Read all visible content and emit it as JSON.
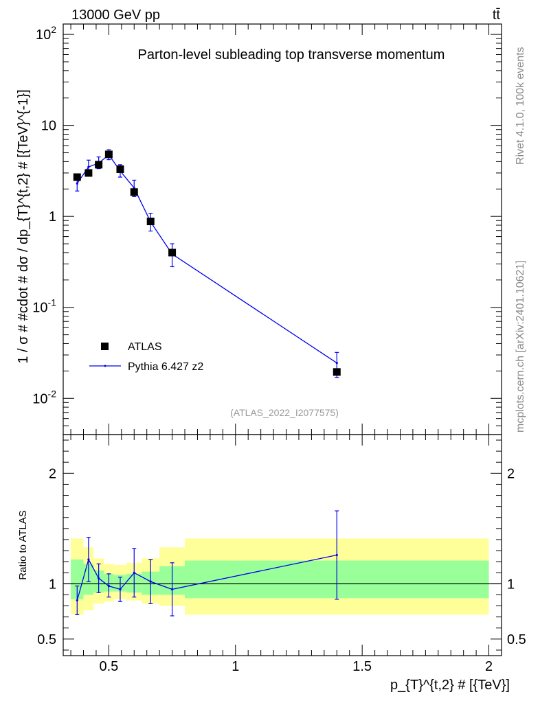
{
  "header": {
    "left": "13000 GeV pp",
    "right": "tt̄"
  },
  "side_labels": {
    "top": "Rivet 4.1.0,  100k events",
    "bottom": "mcplots.cern.ch [arXiv:2401.10621]"
  },
  "colors": {
    "mc": "#0000ee",
    "band_outer": "#ffff99",
    "band_inner": "#99ff99",
    "data": "#000000",
    "watermark": "#999999"
  },
  "chart_data": [
    {
      "type": "line",
      "panel": "main",
      "title": "Parton-level subleading top transverse momentum",
      "watermark": "(ATLAS_2022_I2077575)",
      "xlabel": "p_{T}^{t,2} # [{TeV}]",
      "ylabel": "1 / σ # #cdot # dσ / dp_{T}^{t,2} # [{TeV}^{-1}]",
      "yscale": "log",
      "xlim": [
        0.32,
        2.05
      ],
      "ylim": [
        0.004,
        130
      ],
      "y_ticks": [
        {
          "v": 0.01,
          "mant": "10",
          "exp": "-2"
        },
        {
          "v": 0.1,
          "mant": "10",
          "exp": "-1"
        },
        {
          "v": 1,
          "mant": "1",
          "exp": ""
        },
        {
          "v": 10,
          "mant": "10",
          "exp": ""
        },
        {
          "v": 100,
          "mant": "10",
          "exp": "2"
        }
      ],
      "legend": {
        "position": "bottom-left",
        "entries": [
          "ATLAS",
          "Pythia 6.427 z2"
        ]
      },
      "series": [
        {
          "name": "ATLAS",
          "style": "markers",
          "points": [
            {
              "x": 0.375,
              "y": 2.7
            },
            {
              "x": 0.42,
              "y": 3.0
            },
            {
              "x": 0.46,
              "y": 3.7
            },
            {
              "x": 0.5,
              "y": 4.8
            },
            {
              "x": 0.545,
              "y": 3.3
            },
            {
              "x": 0.6,
              "y": 1.85
            },
            {
              "x": 0.665,
              "y": 0.88
            },
            {
              "x": 0.75,
              "y": 0.4
            },
            {
              "x": 1.4,
              "y": 0.0195
            }
          ]
        },
        {
          "name": "Pythia 6.427 z2",
          "style": "line",
          "points": [
            {
              "x": 0.375,
              "y": 2.3,
              "lo": 1.9,
              "hi": 2.75
            },
            {
              "x": 0.42,
              "y": 3.5,
              "lo": 3.05,
              "hi": 4.15
            },
            {
              "x": 0.46,
              "y": 3.85,
              "lo": 3.35,
              "hi": 4.5
            },
            {
              "x": 0.5,
              "y": 4.75,
              "lo": 4.2,
              "hi": 5.4
            },
            {
              "x": 0.545,
              "y": 3.15,
              "lo": 2.7,
              "hi": 3.7
            },
            {
              "x": 0.6,
              "y": 2.05,
              "lo": 1.65,
              "hi": 2.5
            },
            {
              "x": 0.665,
              "y": 0.87,
              "lo": 0.69,
              "hi": 1.08
            },
            {
              "x": 0.75,
              "y": 0.385,
              "lo": 0.28,
              "hi": 0.5
            },
            {
              "x": 1.4,
              "y": 0.0245,
              "lo": 0.017,
              "hi": 0.032
            }
          ]
        }
      ]
    },
    {
      "type": "line",
      "panel": "ratio",
      "ylabel": "Ratio to ATLAS",
      "xlim": [
        0.32,
        2.05
      ],
      "ylim": [
        0.35,
        2.35
      ],
      "x_ticks": [
        {
          "v": 0.5,
          "label": "0.5"
        },
        {
          "v": 1,
          "label": "1"
        },
        {
          "v": 1.5,
          "label": "1.5"
        },
        {
          "v": 2,
          "label": "2"
        }
      ],
      "y_ticks": [
        {
          "v": 0.5,
          "label": "0.5"
        },
        {
          "v": 1,
          "label": "1"
        },
        {
          "v": 2,
          "label": "2"
        }
      ],
      "bands": [
        {
          "x0": 0.35,
          "x1": 0.4,
          "outer": [
            0.72,
            1.41
          ],
          "inner": [
            0.86,
            1.22
          ]
        },
        {
          "x0": 0.4,
          "x1": 0.44,
          "outer": [
            0.76,
            1.33
          ],
          "inner": [
            0.9,
            1.18
          ]
        },
        {
          "x0": 0.44,
          "x1": 0.48,
          "outer": [
            0.82,
            1.23
          ],
          "inner": [
            0.92,
            1.12
          ]
        },
        {
          "x0": 0.48,
          "x1": 0.52,
          "outer": [
            0.84,
            1.18
          ],
          "inner": [
            0.93,
            1.09
          ]
        },
        {
          "x0": 0.52,
          "x1": 0.57,
          "outer": [
            0.86,
            1.17
          ],
          "inner": [
            0.93,
            1.08
          ]
        },
        {
          "x0": 0.57,
          "x1": 0.63,
          "outer": [
            0.85,
            1.19
          ],
          "inner": [
            0.92,
            1.09
          ]
        },
        {
          "x0": 0.63,
          "x1": 0.7,
          "outer": [
            0.82,
            1.23
          ],
          "inner": [
            0.9,
            1.11
          ]
        },
        {
          "x0": 0.7,
          "x1": 0.8,
          "outer": [
            0.8,
            1.33
          ],
          "inner": [
            0.9,
            1.16
          ]
        },
        {
          "x0": 0.8,
          "x1": 2.0,
          "outer": [
            0.72,
            1.41
          ],
          "inner": [
            0.87,
            1.21
          ]
        }
      ],
      "series": [
        {
          "name": "Pythia 6.427 z2",
          "points": [
            {
              "x": 0.375,
              "y": 0.85,
              "lo": 0.72,
              "hi": 0.98
            },
            {
              "x": 0.42,
              "y": 1.22,
              "lo": 1.02,
              "hi": 1.42
            },
            {
              "x": 0.46,
              "y": 1.05,
              "lo": 0.92,
              "hi": 1.18
            },
            {
              "x": 0.5,
              "y": 0.98,
              "lo": 0.88,
              "hi": 1.09
            },
            {
              "x": 0.545,
              "y": 0.95,
              "lo": 0.84,
              "hi": 1.06
            },
            {
              "x": 0.6,
              "y": 1.1,
              "lo": 0.88,
              "hi": 1.32
            },
            {
              "x": 0.665,
              "y": 1.02,
              "lo": 0.82,
              "hi": 1.22
            },
            {
              "x": 0.75,
              "y": 0.95,
              "lo": 0.71,
              "hi": 1.19
            },
            {
              "x": 1.4,
              "y": 1.26,
              "lo": 0.86,
              "hi": 1.66
            }
          ]
        }
      ]
    }
  ]
}
